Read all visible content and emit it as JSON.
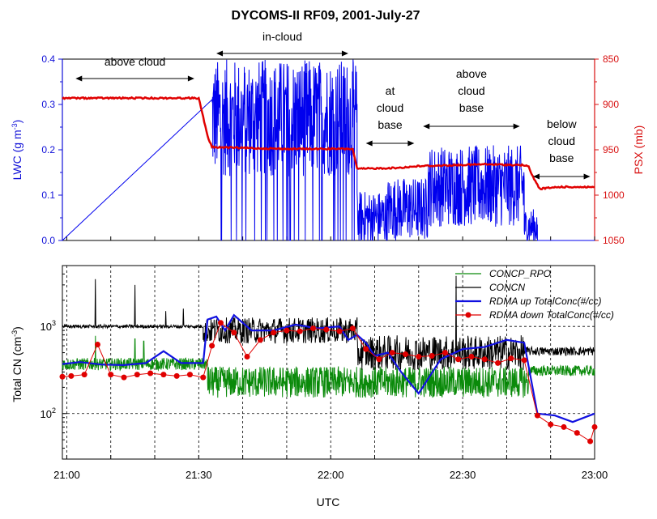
{
  "chart_data": [
    {
      "type": "line",
      "title": "DYCOMS-II RF09, 2001-July-27",
      "xlabel": "UTC",
      "x_ticks": [
        "21:00",
        "21:30",
        "22:00",
        "22:30",
        "23:00"
      ],
      "xlim_minutes": [
        -1,
        120
      ],
      "left_axis": {
        "label_main": "LWC (g m",
        "label_sup": "-3",
        "label_end": ")",
        "ticks": [
          "0.0",
          "0.1",
          "0.2",
          "0.3",
          "0.4"
        ],
        "ylim": [
          0,
          0.4
        ],
        "color": "#1010d8"
      },
      "right_axis": {
        "label": "PSX (mb)",
        "ticks": [
          "850",
          "900",
          "950",
          "1000",
          "1050"
        ],
        "ylim": [
          1050,
          850
        ],
        "color": "#d81010"
      },
      "annotations": [
        {
          "lines": [
            "above cloud"
          ],
          "x_range": [
            2,
            29
          ]
        },
        {
          "lines": [
            "in-cloud"
          ],
          "x_range": [
            34,
            64
          ]
        },
        {
          "lines": [
            "at",
            "cloud",
            "base"
          ],
          "x_range": [
            68,
            79
          ]
        },
        {
          "lines": [
            "above",
            "cloud",
            "base"
          ],
          "x_range": [
            81,
            103
          ]
        },
        {
          "lines": [
            "below",
            "cloud",
            "base"
          ],
          "x_range": [
            106,
            119
          ]
        }
      ],
      "series": [
        {
          "name": "PSX",
          "axis": "right",
          "color": "#e00000",
          "x": [
            -1,
            30,
            32,
            33,
            40,
            50,
            65,
            66,
            75,
            80,
            95,
            104,
            105,
            106,
            107.5,
            112,
            120
          ],
          "y": [
            893,
            893,
            935,
            947,
            948,
            949,
            949,
            971,
            970,
            968,
            966,
            967,
            969,
            980,
            993,
            991,
            991
          ]
        },
        {
          "name": "LWC",
          "axis": "left",
          "color": "#0000ee",
          "segments": [
            {
              "x_range": [
                33,
                66
              ],
              "mean": 0.27,
              "amp": 0.13,
              "dropouts": true
            },
            {
              "x_range": [
                66,
                73
              ],
              "mean": 0.05,
              "amp": 0.06
            },
            {
              "x_range": [
                73,
                82
              ],
              "mean": 0.07,
              "amp": 0.07
            },
            {
              "x_range": [
                82,
                104
              ],
              "mean": 0.12,
              "amp": 0.09
            },
            {
              "x_range": [
                104,
                107
              ],
              "mean": 0.03,
              "amp": 0.04
            }
          ]
        }
      ]
    },
    {
      "type": "line",
      "ylabel_main": "Total CN (cm",
      "ylabel_sup": "-3",
      "ylabel_end": ")",
      "y_scale": "log",
      "ylim": [
        30,
        5000
      ],
      "y_tick_labels": [
        {
          "base": "10",
          "exp": "2",
          "value": 100
        },
        {
          "base": "10",
          "exp": "3",
          "value": 1000
        }
      ],
      "x_ticks": [
        "21:00",
        "21:30",
        "22:00",
        "22:30",
        "23:00"
      ],
      "series": [
        {
          "name": "CONCP_RPO",
          "color": "#0a8a0a",
          "segments": [
            {
              "x_range": [
                -1,
                32
              ],
              "mean": 370,
              "spread": 0.07,
              "spikes": [
                [
                  6.5,
                  780
                ],
                [
                  15.5,
                  720
                ],
                [
                  17.5,
                  680
                ]
              ]
            },
            {
              "x_range": [
                32,
                105
              ],
              "mean": 230,
              "spread": 0.18
            },
            {
              "x_range": [
                105,
                120
              ],
              "mean": 310,
              "spread": 0.06
            }
          ]
        },
        {
          "name": "CONCN",
          "color": "#000000",
          "segments": [
            {
              "x_range": [
                -1,
                31
              ],
              "mean": 1000,
              "spikes": [
                [
                  6.5,
                  3500
                ],
                [
                  15.5,
                  3000
                ],
                [
                  22.5,
                  1500
                ],
                [
                  26.5,
                  1600
                ]
              ]
            },
            {
              "x_range": [
                31,
                66
              ],
              "mean": 900,
              "spread": 0.15
            },
            {
              "x_range": [
                66,
                104
              ],
              "mean": 500,
              "spread": 0.2,
              "spikes": [
                [
                  88.5,
                  3800
                ]
              ]
            },
            {
              "x_range": [
                104,
                120
              ],
              "mean": 520,
              "spread": 0.05
            }
          ]
        },
        {
          "name": "RDMA up TotalConc(#/cc)",
          "color": "#1010e0",
          "x": [
            -1,
            3,
            8,
            13,
            18,
            22,
            26,
            31,
            32,
            34,
            36,
            38,
            42,
            47,
            52,
            57,
            62,
            64,
            66,
            68,
            70,
            73,
            76,
            80,
            85,
            90,
            95,
            100,
            104,
            107,
            111,
            115,
            120
          ],
          "y": [
            370,
            390,
            365,
            360,
            380,
            520,
            380,
            380,
            1200,
            1300,
            900,
            1350,
            900,
            900,
            1050,
            950,
            1000,
            700,
            800,
            650,
            460,
            500,
            300,
            170,
            420,
            550,
            580,
            700,
            650,
            100,
            95,
            80,
            100
          ]
        },
        {
          "name": "RDMA down TotalConc(#/cc)",
          "color": "#e00000",
          "x": [
            -1,
            1,
            4,
            7,
            10,
            13,
            16,
            19,
            22,
            25,
            28,
            31,
            33,
            35,
            38,
            41,
            44,
            47,
            50,
            53,
            56,
            59,
            62,
            65,
            68,
            71,
            74,
            77,
            80,
            83,
            86,
            89,
            92,
            95,
            98,
            101,
            104,
            107,
            110,
            113,
            116,
            119,
            120
          ],
          "y": [
            265,
            270,
            280,
            620,
            280,
            260,
            280,
            290,
            280,
            270,
            280,
            260,
            600,
            1100,
            850,
            450,
            700,
            850,
            900,
            880,
            950,
            920,
            880,
            950,
            550,
            420,
            500,
            480,
            450,
            460,
            500,
            420,
            450,
            420,
            380,
            430,
            410,
            95,
            75,
            70,
            60,
            48,
            70
          ]
        }
      ]
    }
  ]
}
